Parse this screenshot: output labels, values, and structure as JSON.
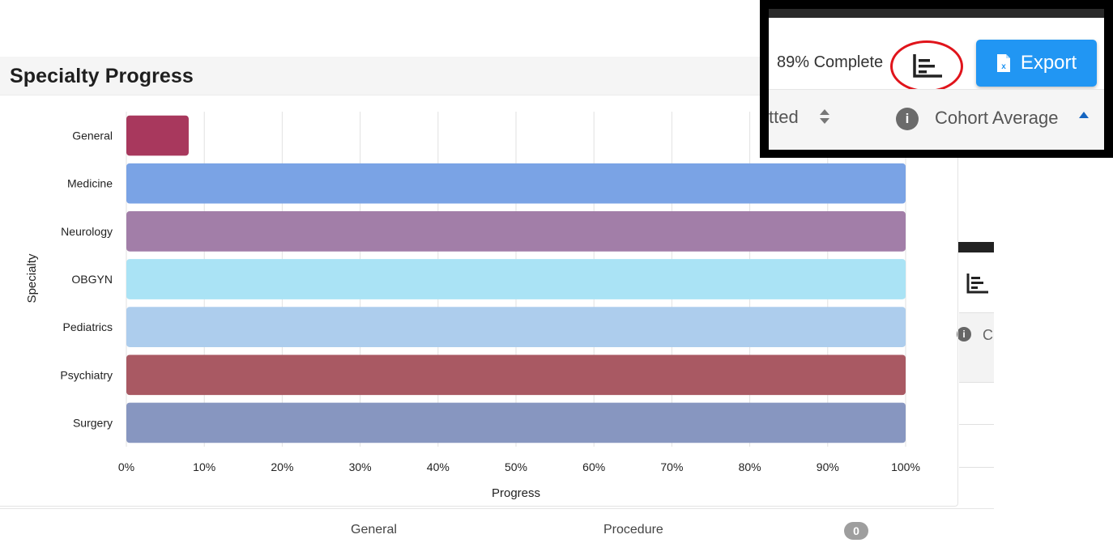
{
  "panel": {
    "title": "Specialty Progress"
  },
  "chart_data": {
    "type": "bar",
    "orientation": "horizontal",
    "title": "Specialty Progress",
    "xlabel": "Progress",
    "ylabel": "Specialty",
    "xlim": [
      0,
      100
    ],
    "x_tick_labels": [
      "0%",
      "10%",
      "20%",
      "30%",
      "40%",
      "50%",
      "60%",
      "70%",
      "80%",
      "90%",
      "100%"
    ],
    "grid": "vertical",
    "categories": [
      "General",
      "Medicine",
      "Neurology",
      "OBGYN",
      "Pediatrics",
      "Psychiatry",
      "Surgery"
    ],
    "values": [
      8,
      100,
      100,
      100,
      100,
      100,
      100
    ],
    "colors": [
      "#a8385d",
      "#7aa3e5",
      "#a27ea8",
      "#aae3f5",
      "#adcded",
      "#a95963",
      "#8796c0"
    ]
  },
  "callout": {
    "complete_text": "89% Complete",
    "chart_toggle_icon": "bar-chart-icon",
    "export_label": "Export",
    "export_icon": "excel-file-icon",
    "header_fragment": "tted",
    "info_symbol": "i",
    "cohort_label": "Cohort Average",
    "highlight_color": "#e0141b",
    "button_color": "#2196f3"
  },
  "background": {
    "info_symbol": "i",
    "cohort_fragment": "C",
    "bottom_tabs": [
      "General",
      "Procedure"
    ],
    "badge_count": "0"
  }
}
